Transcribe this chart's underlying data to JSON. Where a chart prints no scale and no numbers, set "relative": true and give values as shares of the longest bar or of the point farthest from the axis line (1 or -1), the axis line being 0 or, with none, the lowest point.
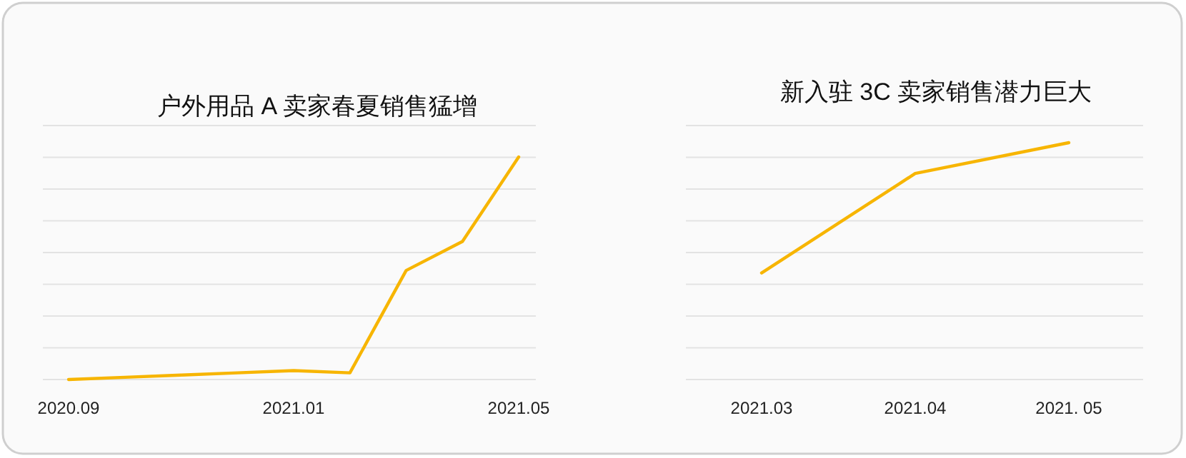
{
  "chart_data": [
    {
      "type": "line",
      "title": "户外用品 A 卖家春夏销售猛增",
      "relative": true,
      "grid": "y",
      "categories": [
        "2020.09",
        null,
        null,
        null,
        "2021.01",
        null,
        null,
        null,
        "2021.05"
      ],
      "series": [
        {
          "color": "#f7b500",
          "values": [
            0,
            0.01,
            0.02,
            0.03,
            0.04,
            0.03,
            0.49,
            0.62,
            1
          ]
        }
      ]
    },
    {
      "type": "line",
      "title": "新入驻 3C 卖家销售潜力巨大",
      "relative": true,
      "grid": "y",
      "categories": [
        "2021.03",
        "2021.04",
        "2021. 05"
      ],
      "series": [
        {
          "color": "#f7b500",
          "values": [
            0.45,
            0.87,
            1
          ]
        }
      ]
    }
  ]
}
